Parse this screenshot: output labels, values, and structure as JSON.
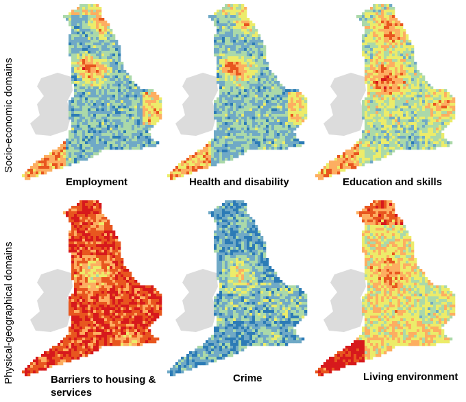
{
  "rows": [
    {
      "label": "Socio-economic domains",
      "panels": [
        {
          "caption": "Employment",
          "pattern": "socio_a"
        },
        {
          "caption": "Health and disability",
          "pattern": "socio_b"
        },
        {
          "caption": "Education and skills",
          "pattern": "education"
        }
      ]
    },
    {
      "label": "Physical-geographical domains",
      "panels": [
        {
          "caption": "Barriers to housing & services",
          "pattern": "barriers"
        },
        {
          "caption": "Crime",
          "pattern": "crime"
        },
        {
          "caption": "Living environment",
          "pattern": "living"
        }
      ]
    }
  ],
  "colors": {
    "wales": "#dcdcdc",
    "ramp": [
      "#2c7bb6",
      "#6fa9c6",
      "#abd9a9",
      "#ecec6a",
      "#fdae61",
      "#e8561f",
      "#d7191c"
    ]
  }
}
